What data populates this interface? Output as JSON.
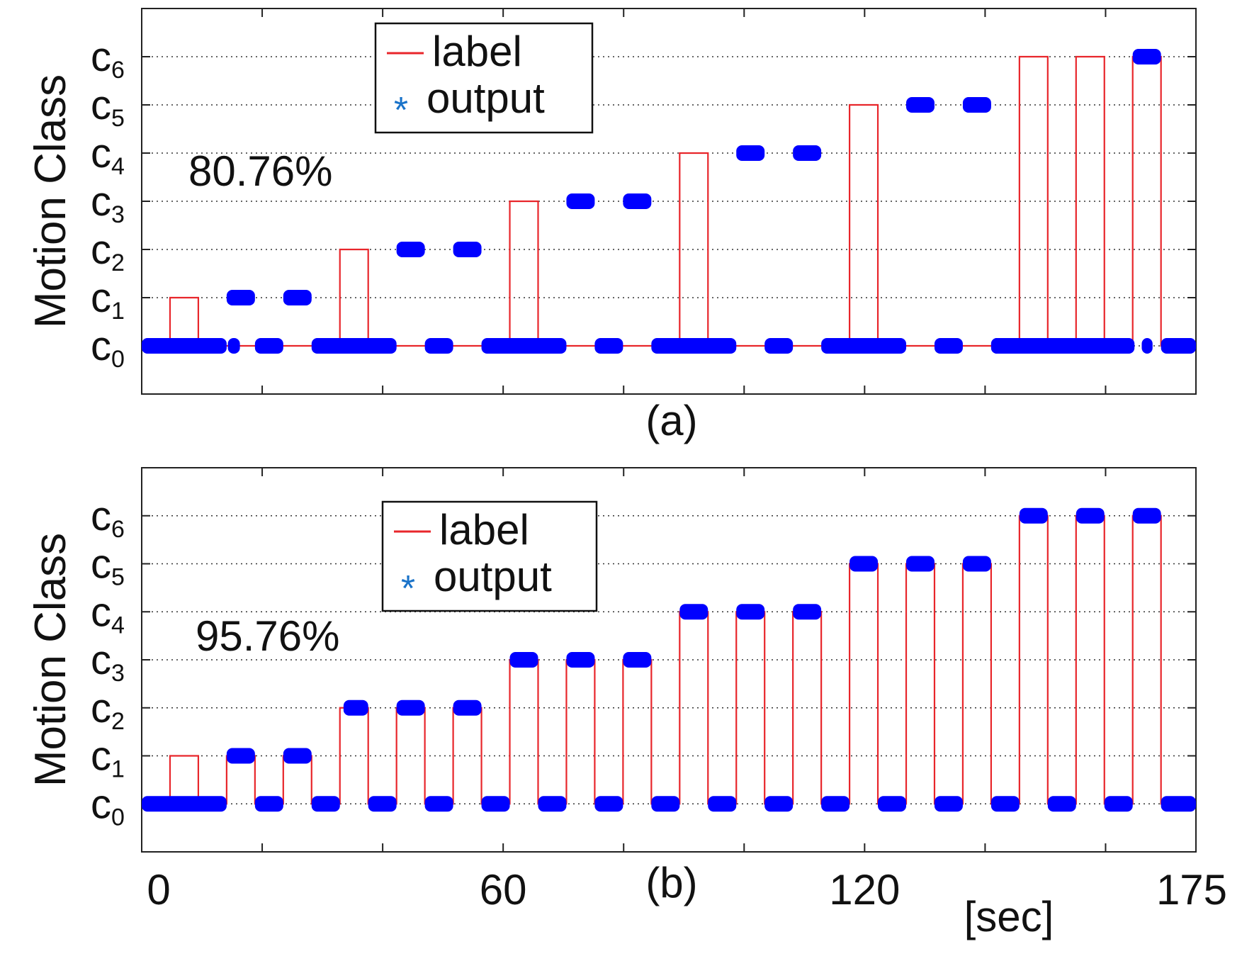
{
  "chart_data": [
    {
      "type": "line",
      "panel": "(a)",
      "ylabel": "Motion Class",
      "y_ticks": [
        {
          "base": "c",
          "sub": "0",
          "value": 0
        },
        {
          "base": "c",
          "sub": "1",
          "value": 1
        },
        {
          "base": "c",
          "sub": "2",
          "value": 2
        },
        {
          "base": "c",
          "sub": "3",
          "value": 3
        },
        {
          "base": "c",
          "sub": "4",
          "value": 4
        },
        {
          "base": "c",
          "sub": "5",
          "value": 5
        },
        {
          "base": "c",
          "sub": "6",
          "value": 6
        }
      ],
      "xlim": [
        0,
        175
      ],
      "ylim": [
        -1,
        7
      ],
      "x_tick_positions": [
        0,
        20,
        40,
        60,
        80,
        100,
        120,
        140,
        160,
        175
      ],
      "grid": "horizontal dotted",
      "legend": {
        "position": "top-left",
        "entries": [
          {
            "symbol": "line",
            "label": "label"
          },
          {
            "symbol": "*",
            "label": "output"
          }
        ]
      },
      "annotation": "80.76%",
      "series": [
        {
          "name": "label",
          "color": "#e8262b",
          "segments": [
            [
              0,
              4.7,
              0
            ],
            [
              4.7,
              9.4,
              1
            ],
            [
              9.4,
              14.1,
              0
            ],
            [
              14.1,
              18.8,
              0
            ],
            [
              18.8,
              23.5,
              0
            ],
            [
              23.5,
              28.2,
              0
            ],
            [
              28.2,
              32.9,
              0
            ],
            [
              32.9,
              37.6,
              2
            ],
            [
              37.6,
              42.3,
              0
            ],
            [
              42.3,
              47.0,
              0
            ],
            [
              47.0,
              51.7,
              0
            ],
            [
              51.7,
              56.4,
              0
            ],
            [
              56.4,
              61.1,
              0
            ],
            [
              61.1,
              65.8,
              3
            ],
            [
              65.8,
              70.5,
              0
            ],
            [
              70.5,
              75.2,
              0
            ],
            [
              75.2,
              79.9,
              0
            ],
            [
              79.9,
              84.6,
              0
            ],
            [
              84.6,
              89.3,
              0
            ],
            [
              89.3,
              94.0,
              4
            ],
            [
              94.0,
              98.7,
              0
            ],
            [
              98.7,
              103.4,
              0
            ],
            [
              103.4,
              108.1,
              0
            ],
            [
              108.1,
              112.8,
              0
            ],
            [
              112.8,
              117.5,
              0
            ],
            [
              117.5,
              122.2,
              5
            ],
            [
              122.2,
              126.9,
              0
            ],
            [
              126.9,
              131.6,
              0
            ],
            [
              131.6,
              136.3,
              0
            ],
            [
              136.3,
              141.0,
              0
            ],
            [
              141.0,
              145.7,
              0
            ],
            [
              145.7,
              150.4,
              6
            ],
            [
              150.4,
              155.1,
              0
            ],
            [
              155.1,
              159.8,
              6
            ],
            [
              159.8,
              164.5,
              0
            ],
            [
              164.5,
              169.2,
              6
            ],
            [
              169.2,
              175,
              0
            ]
          ]
        },
        {
          "name": "output",
          "color": "#0000ff",
          "segments": [
            [
              0,
              14.1,
              0
            ],
            [
              14.3,
              16.3,
              0
            ],
            [
              14.1,
              18.8,
              1
            ],
            [
              18.8,
              23.5,
              0
            ],
            [
              23.5,
              28.2,
              1
            ],
            [
              28.2,
              42.3,
              0
            ],
            [
              42.3,
              47.0,
              2
            ],
            [
              47.0,
              51.7,
              0
            ],
            [
              51.7,
              56.4,
              2
            ],
            [
              56.4,
              70.5,
              0
            ],
            [
              70.5,
              75.2,
              3
            ],
            [
              75.2,
              79.9,
              0
            ],
            [
              79.9,
              84.6,
              3
            ],
            [
              84.6,
              98.7,
              0
            ],
            [
              98.7,
              103.4,
              4
            ],
            [
              103.4,
              108.1,
              0
            ],
            [
              108.1,
              112.8,
              4
            ],
            [
              112.8,
              126.9,
              0
            ],
            [
              126.9,
              131.6,
              5
            ],
            [
              131.6,
              136.3,
              0
            ],
            [
              136.3,
              141.0,
              5
            ],
            [
              141.0,
              155.1,
              0
            ],
            [
              164.5,
              169.2,
              6
            ],
            [
              141.0,
              164.8,
              0
            ],
            [
              166.0,
              167.8,
              0
            ],
            [
              169.2,
              175,
              0
            ]
          ]
        }
      ]
    },
    {
      "type": "line",
      "panel": "(b)",
      "ylabel": "Motion Class",
      "y_ticks": [
        {
          "base": "c",
          "sub": "0",
          "value": 0
        },
        {
          "base": "c",
          "sub": "1",
          "value": 1
        },
        {
          "base": "c",
          "sub": "2",
          "value": 2
        },
        {
          "base": "c",
          "sub": "3",
          "value": 3
        },
        {
          "base": "c",
          "sub": "4",
          "value": 4
        },
        {
          "base": "c",
          "sub": "5",
          "value": 5
        },
        {
          "base": "c",
          "sub": "6",
          "value": 6
        }
      ],
      "xlim": [
        0,
        175
      ],
      "ylim": [
        -1,
        7
      ],
      "x_tick_positions": [
        0,
        20,
        40,
        60,
        80,
        100,
        120,
        140,
        160,
        175
      ],
      "x_tick_labels": [
        {
          "value": 0,
          "text": "0"
        },
        {
          "value": 60,
          "text": "60"
        },
        {
          "value": 120,
          "text": "120"
        },
        {
          "value": 175,
          "text": "175"
        }
      ],
      "xlabel": "[sec]",
      "grid": "horizontal dotted",
      "legend": {
        "position": "top-left",
        "entries": [
          {
            "symbol": "line",
            "label": "label"
          },
          {
            "symbol": "*",
            "label": "output"
          }
        ]
      },
      "annotation": "95.76%",
      "series": [
        {
          "name": "label",
          "color": "#e8262b",
          "segments": [
            [
              0,
              4.7,
              0
            ],
            [
              4.7,
              9.4,
              1
            ],
            [
              9.4,
              14.1,
              0
            ],
            [
              14.1,
              18.8,
              1
            ],
            [
              18.8,
              23.5,
              0
            ],
            [
              23.5,
              28.2,
              1
            ],
            [
              28.2,
              32.9,
              0
            ],
            [
              32.9,
              37.6,
              2
            ],
            [
              37.6,
              42.3,
              0
            ],
            [
              42.3,
              47.0,
              2
            ],
            [
              47.0,
              51.7,
              0
            ],
            [
              51.7,
              56.4,
              2
            ],
            [
              56.4,
              61.1,
              0
            ],
            [
              61.1,
              65.8,
              3
            ],
            [
              65.8,
              70.5,
              0
            ],
            [
              70.5,
              75.2,
              3
            ],
            [
              75.2,
              79.9,
              0
            ],
            [
              79.9,
              84.6,
              3
            ],
            [
              84.6,
              89.3,
              0
            ],
            [
              89.3,
              94.0,
              4
            ],
            [
              94.0,
              98.7,
              0
            ],
            [
              98.7,
              103.4,
              4
            ],
            [
              103.4,
              108.1,
              0
            ],
            [
              108.1,
              112.8,
              4
            ],
            [
              112.8,
              117.5,
              0
            ],
            [
              117.5,
              122.2,
              5
            ],
            [
              122.2,
              126.9,
              0
            ],
            [
              126.9,
              131.6,
              5
            ],
            [
              131.6,
              136.3,
              0
            ],
            [
              136.3,
              141.0,
              5
            ],
            [
              141.0,
              145.7,
              0
            ],
            [
              145.7,
              150.4,
              6
            ],
            [
              150.4,
              155.1,
              0
            ],
            [
              155.1,
              159.8,
              6
            ],
            [
              159.8,
              164.5,
              0
            ],
            [
              164.5,
              169.2,
              6
            ],
            [
              169.2,
              175,
              0
            ]
          ]
        },
        {
          "name": "output",
          "color": "#0000ff",
          "segments": [
            [
              0,
              14.1,
              0
            ],
            [
              14.1,
              18.8,
              1
            ],
            [
              18.8,
              23.5,
              0
            ],
            [
              23.5,
              28.2,
              1
            ],
            [
              28.2,
              32.9,
              0
            ],
            [
              33.5,
              37.6,
              2
            ],
            [
              37.6,
              42.3,
              0
            ],
            [
              42.3,
              47.0,
              2
            ],
            [
              47.0,
              51.7,
              0
            ],
            [
              51.7,
              56.4,
              2
            ],
            [
              56.4,
              61.1,
              0
            ],
            [
              61.1,
              65.8,
              3
            ],
            [
              65.8,
              70.5,
              0
            ],
            [
              70.5,
              75.2,
              3
            ],
            [
              75.2,
              79.9,
              0
            ],
            [
              79.9,
              84.6,
              3
            ],
            [
              84.6,
              89.3,
              0
            ],
            [
              89.3,
              94.0,
              4
            ],
            [
              94.0,
              98.7,
              0
            ],
            [
              98.7,
              103.4,
              4
            ],
            [
              103.4,
              108.1,
              0
            ],
            [
              108.1,
              112.8,
              4
            ],
            [
              112.8,
              117.5,
              0
            ],
            [
              117.5,
              122.2,
              5
            ],
            [
              122.2,
              126.9,
              0
            ],
            [
              126.9,
              131.6,
              5
            ],
            [
              131.6,
              136.3,
              0
            ],
            [
              136.3,
              141.0,
              5
            ],
            [
              141.0,
              145.7,
              0
            ],
            [
              145.7,
              150.4,
              6
            ],
            [
              150.4,
              155.1,
              0
            ],
            [
              155.1,
              159.8,
              6
            ],
            [
              159.8,
              164.5,
              0
            ],
            [
              164.5,
              169.2,
              6
            ],
            [
              169.2,
              175,
              0
            ]
          ]
        }
      ]
    }
  ]
}
